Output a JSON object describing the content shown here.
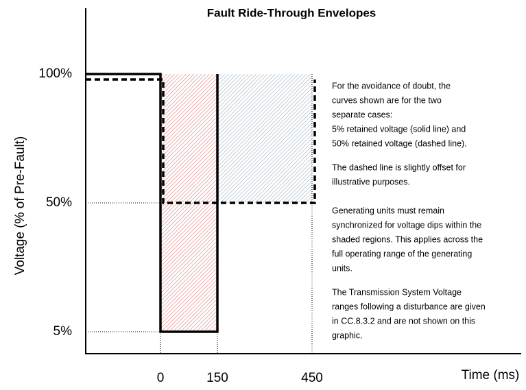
{
  "chart_data": {
    "type": "envelope",
    "title": "Fault Ride-Through Envelopes",
    "ylabel": "Voltage (% of Pre-Fault)",
    "xlabel": "Time (ms)",
    "yticks": [
      {
        "value": 5,
        "label": "5%"
      },
      {
        "value": 50,
        "label": "50%"
      },
      {
        "value": 100,
        "label": "100%"
      }
    ],
    "xticks": [
      0,
      150,
      450
    ],
    "series": [
      {
        "style": "solid",
        "color": "#000000",
        "x": [
          0,
          0,
          150,
          150
        ],
        "values": [
          100,
          5,
          5,
          100
        ]
      },
      {
        "style": "dashed",
        "color": "#000000",
        "x": [
          0,
          0,
          450,
          450
        ],
        "values": [
          100,
          50,
          50,
          100
        ]
      }
    ],
    "regions": [
      {
        "x": [
          0,
          150
        ],
        "y": [
          5,
          100
        ],
        "color": "#e58a8a"
      },
      {
        "x": [
          150,
          450
        ],
        "y": [
          50,
          100
        ],
        "color": "#a9b8c8"
      }
    ],
    "annotations": [
      [
        "For the avoidance of doubt, the",
        "curves shown are for the two",
        "separate cases:",
        "5% retained voltage (solid line) and",
        "50% retained voltage (dashed line)."
      ],
      [
        "The dashed line is slightly offset for",
        "illustrative purposes."
      ],
      [
        "Generating units must remain",
        "synchronized for voltage dips within the",
        "shaded regions.  This applies across the",
        "full operating range of the generating",
        "units."
      ],
      [
        "The Transmission System Voltage",
        "ranges following a disturbance are given",
        "in CC.8.3.2 and are not shown on this",
        "graphic."
      ]
    ]
  }
}
